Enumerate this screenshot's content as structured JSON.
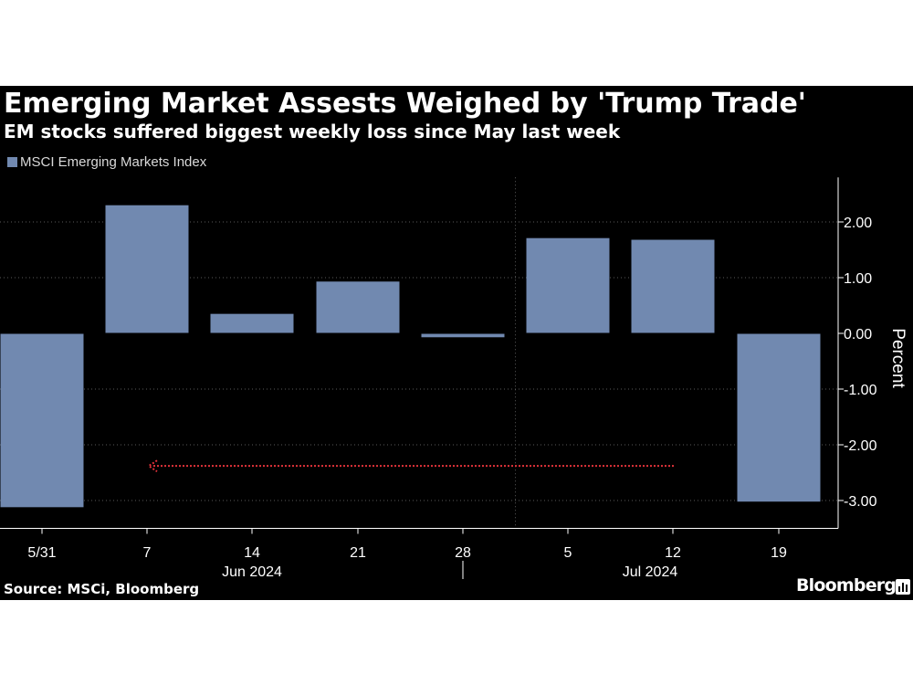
{
  "title": "Emerging Market Assests Weighed by 'Trump Trade'",
  "subtitle": "EM stocks suffered biggest weekly loss since May last week",
  "source": "Source: MSCi, Bloomberg",
  "brand": "Bloomberg",
  "brand_icon": "bloomberg-chart-icon",
  "colors": {
    "background": "#000000",
    "bar": "#7189b0",
    "arrow": "#e0323a",
    "text": "#ffffff",
    "grid": "#5a5a5a"
  },
  "chart_data": {
    "type": "bar",
    "title": "Emerging Market Assests Weighed by 'Trump Trade'",
    "subtitle": "EM stocks suffered biggest weekly loss since May last week",
    "categories": [
      "5/31",
      "7",
      "14",
      "21",
      "28",
      "5",
      "12",
      "19"
    ],
    "month_labels": [
      "Jun 2024",
      "Jul 2024"
    ],
    "series": [
      {
        "name": "MSCI Emerging Markets Index",
        "values": [
          -3.12,
          2.3,
          0.35,
          0.93,
          -0.07,
          1.71,
          1.68,
          -3.02
        ]
      }
    ],
    "ylabel": "Percent",
    "ylim": [
      -3.5,
      2.8
    ],
    "yticks": [
      "2.00",
      "1.00",
      "0.00",
      "-1.00",
      "-2.00",
      "-3.00"
    ],
    "ytick_values": [
      2,
      1,
      0,
      -1,
      -2,
      -3
    ],
    "y_axis_side": "right",
    "grid": true,
    "legend": "top-left",
    "annotation": {
      "type": "dotted-arrow",
      "from_category": "12",
      "to_category": "7",
      "y": -2.38,
      "color": "#e0323a"
    }
  }
}
